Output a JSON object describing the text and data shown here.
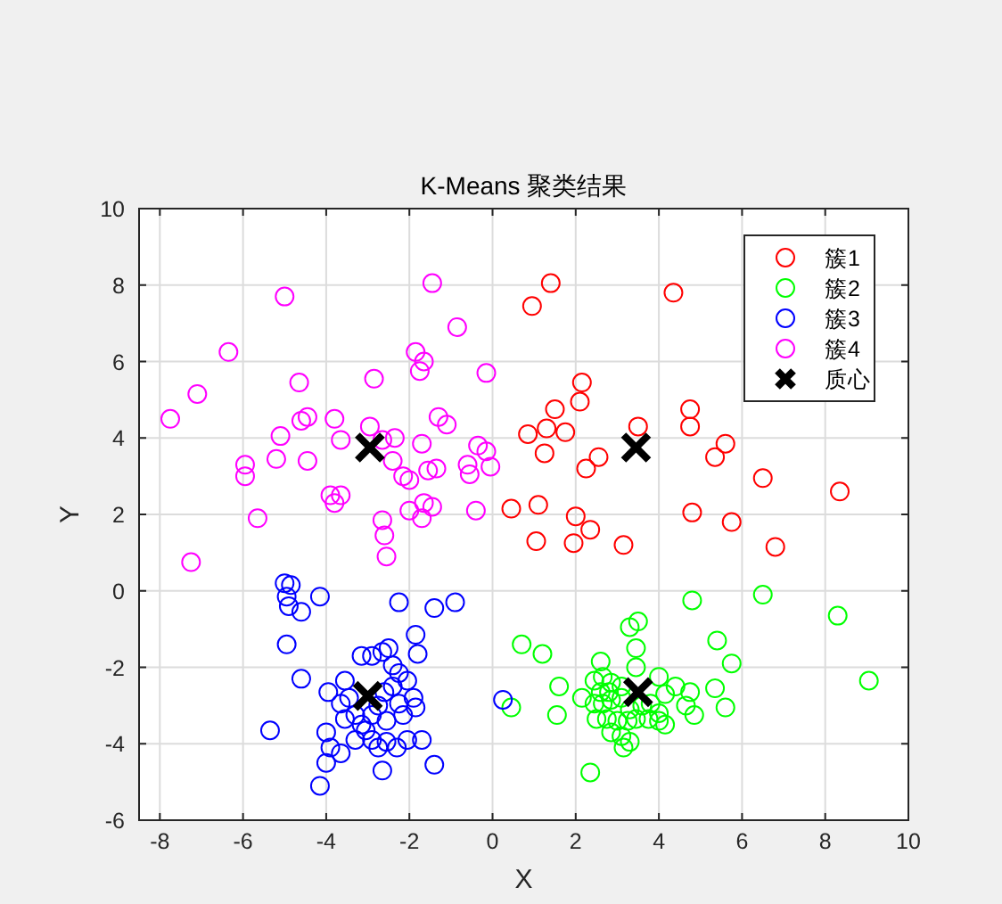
{
  "chart_data": {
    "type": "scatter",
    "title": "K-Means 聚类结果",
    "xlabel": "X",
    "ylabel": "Y",
    "xlim": [
      -8.5,
      10
    ],
    "ylim": [
      -6,
      10
    ],
    "xticks": [
      -8,
      -6,
      -4,
      -2,
      0,
      2,
      4,
      6,
      8,
      10
    ],
    "yticks": [
      -6,
      -4,
      -2,
      0,
      2,
      4,
      6,
      8,
      10
    ],
    "grid": true,
    "legend": "top right",
    "marker": "circle",
    "series": [
      {
        "name": "簇1",
        "color": "#ff0000",
        "x": [
          1.4,
          0.95,
          2.15,
          2.1,
          1.5,
          1.3,
          0.85,
          1.75,
          1.25,
          3.5,
          2.55,
          2.25,
          0.45,
          1.1,
          2.0,
          2.35,
          1.05,
          1.95,
          3.15,
          4.35,
          4.75,
          4.75,
          5.6,
          5.35,
          6.5,
          8.35,
          4.8,
          5.75,
          6.8
        ],
        "values": [
          8.05,
          7.45,
          5.45,
          4.95,
          4.75,
          4.25,
          4.1,
          4.15,
          3.6,
          4.3,
          3.5,
          3.2,
          2.15,
          2.25,
          1.95,
          1.6,
          1.3,
          1.25,
          1.2,
          7.8,
          4.75,
          4.3,
          3.85,
          3.5,
          2.95,
          2.6,
          2.05,
          1.8,
          1.15
        ]
      },
      {
        "name": "簇2",
        "color": "#00ff00",
        "x": [
          0.7,
          1.2,
          0.45,
          1.6,
          1.55,
          2.15,
          2.35,
          3.3,
          3.5,
          3.45,
          3.45,
          2.6,
          2.45,
          2.65,
          2.85,
          2.6,
          2.8,
          3.1,
          2.45,
          2.65,
          2.85,
          3.1,
          3.3,
          3.6,
          3.8,
          4.0,
          2.5,
          2.75,
          3.0,
          3.25,
          3.45,
          3.75,
          2.85,
          3.1,
          3.15,
          3.3,
          4.0,
          4.8,
          6.5,
          8.3,
          5.4,
          5.75,
          9.05,
          4.0,
          4.4,
          4.15,
          4.15,
          4.75,
          4.65,
          4.85,
          5.35,
          5.6
        ],
        "values": [
          -1.4,
          -1.65,
          -3.05,
          -2.5,
          -3.25,
          -2.8,
          -4.75,
          -0.95,
          -0.8,
          -1.5,
          -2.0,
          -1.85,
          -2.35,
          -2.25,
          -2.4,
          -2.65,
          -2.65,
          -2.5,
          -2.95,
          -2.95,
          -2.85,
          -2.8,
          -3.1,
          -3.0,
          -2.95,
          -3.2,
          -3.35,
          -3.35,
          -3.4,
          -3.4,
          -3.35,
          -3.35,
          -3.7,
          -3.8,
          -4.1,
          -3.95,
          -3.4,
          -0.25,
          -0.1,
          -0.65,
          -1.3,
          -1.9,
          -2.35,
          -2.25,
          -2.5,
          -2.7,
          -3.5,
          -2.65,
          -3.0,
          -3.25,
          -2.55,
          -3.05
        ]
      },
      {
        "name": "簇3",
        "color": "#0000ff",
        "x": [
          -5.0,
          -4.85,
          -4.95,
          -4.9,
          -4.6,
          -4.15,
          -4.95,
          -4.6,
          -5.35,
          -4.15,
          -2.25,
          -3.95,
          -3.55,
          -3.15,
          -2.9,
          -2.65,
          -2.5,
          -2.4,
          -4.0,
          -3.9,
          -4.0,
          -3.65,
          -3.55,
          -3.45,
          -3.3,
          -3.15,
          -3.05,
          -2.9,
          -2.75,
          -2.6,
          -2.55,
          -2.4,
          -2.25,
          -2.75,
          -2.55,
          -2.3,
          -2.65,
          -3.65,
          -3.3,
          -2.9,
          -2.25,
          -2.15,
          -1.4,
          -0.9,
          -1.85,
          -1.8,
          -2.05,
          -1.9,
          -1.85,
          -2.05,
          -1.7,
          -1.4,
          0.25
        ],
        "values": [
          0.2,
          0.15,
          -0.15,
          -0.4,
          -0.55,
          -0.15,
          -1.4,
          -2.3,
          -3.65,
          -5.1,
          -0.3,
          -2.65,
          -2.35,
          -1.7,
          -1.7,
          -1.6,
          -1.5,
          -1.95,
          -3.7,
          -4.1,
          -4.5,
          -2.95,
          -3.35,
          -2.8,
          -3.25,
          -3.5,
          -3.65,
          -3.25,
          -3.0,
          -2.65,
          -3.4,
          -2.5,
          -2.95,
          -4.1,
          -3.95,
          -4.1,
          -4.7,
          -4.25,
          -3.9,
          -3.9,
          -2.15,
          -3.25,
          -0.45,
          -0.3,
          -1.15,
          -1.65,
          -2.35,
          -2.8,
          -3.05,
          -3.9,
          -3.9,
          -4.55,
          -2.85
        ]
      },
      {
        "name": "簇4",
        "color": "#ff00ff",
        "x": [
          -5.0,
          -6.35,
          -7.1,
          -7.75,
          -4.65,
          -2.85,
          -5.1,
          -4.6,
          -4.45,
          -3.8,
          -3.65,
          -2.95,
          -5.95,
          -5.95,
          -5.2,
          -4.45,
          -3.9,
          -3.65,
          -3.8,
          -5.65,
          -2.65,
          -2.6,
          -2.55,
          -7.25,
          -1.45,
          -0.85,
          -1.85,
          -1.65,
          -1.75,
          -0.15,
          -1.3,
          -1.1,
          -1.7,
          -2.35,
          -0.35,
          -0.15,
          -0.6,
          -0.55,
          -0.05,
          -1.55,
          -1.35,
          -2.15,
          -2.0,
          -2.4,
          -1.65,
          -1.45,
          -0.4,
          -2.0,
          -1.7,
          -2.65
        ],
        "values": [
          7.7,
          6.25,
          5.15,
          4.5,
          5.45,
          5.55,
          4.05,
          4.45,
          4.55,
          4.5,
          3.95,
          4.3,
          3.3,
          3.0,
          3.45,
          3.4,
          2.5,
          2.5,
          2.3,
          1.9,
          1.85,
          1.45,
          0.9,
          0.75,
          8.05,
          6.9,
          6.25,
          6.0,
          5.75,
          5.7,
          4.55,
          4.35,
          3.85,
          4.0,
          3.8,
          3.65,
          3.3,
          3.05,
          3.25,
          3.15,
          3.2,
          3.0,
          2.9,
          3.4,
          2.3,
          2.2,
          2.1,
          2.1,
          1.9,
          3.95
        ]
      },
      {
        "name": "质心",
        "color": "#000000",
        "marker": "cross",
        "x": [
          3.45,
          3.5,
          -3.0,
          -2.95
        ],
        "values": [
          3.75,
          -2.65,
          -2.75,
          3.75
        ]
      }
    ]
  }
}
